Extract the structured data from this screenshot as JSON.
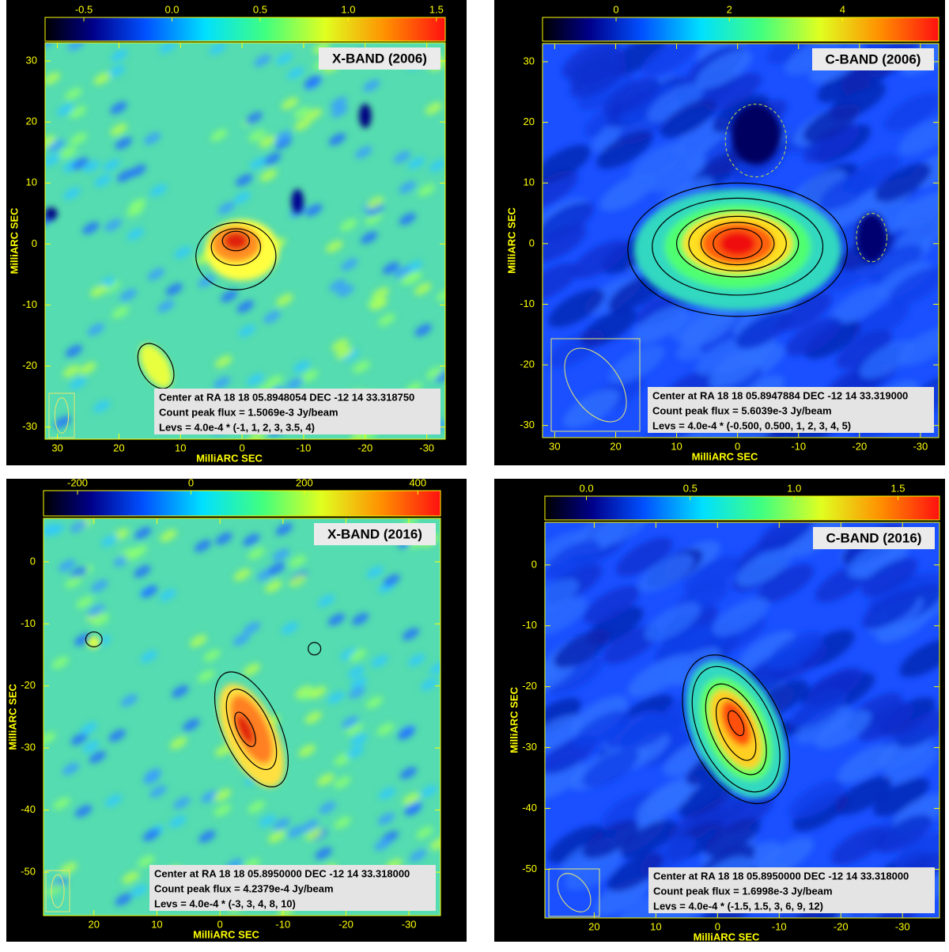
{
  "chart_data": [
    {
      "type": "heatmap",
      "title": "X-BAND (2006)",
      "xlabel": "MilliARC SEC",
      "ylabel": "MilliARC SEC",
      "xlim": [
        32,
        -33
      ],
      "xticks": [
        30,
        20,
        10,
        0,
        -10,
        -20,
        -30
      ],
      "ylim": [
        -32,
        33
      ],
      "yticks": [
        -30,
        -20,
        -10,
        0,
        10,
        20,
        30
      ],
      "clim": [
        -0.72,
        1.55
      ],
      "cticks": [
        -0.5,
        {
          "value": 0,
          "label": "0.0"
        },
        0.5,
        {
          "value": 1,
          "label": "1.0"
        },
        1.5
      ],
      "annotations": [
        "Center at RA 18 18 05.8948054 DEC -12 14 33.318750",
        "Count peak flux = 1.5069e-3 Jy/beam",
        "Levs = 4.0e-4 * (-1, 1, 2, 3, 3.5, 4)"
      ]
    },
    {
      "type": "heatmap",
      "title": "C-BAND (2006)",
      "xlabel": "MilliARC SEC",
      "ylabel": "MilliARC SEC",
      "xlim": [
        32,
        -33
      ],
      "xticks": [
        30,
        20,
        10,
        0,
        -10,
        -20,
        -30
      ],
      "ylim": [
        -32,
        33
      ],
      "yticks": [
        -30,
        -20,
        -10,
        0,
        10,
        20,
        30
      ],
      "clim": [
        -1.3,
        5.7
      ],
      "cticks": [
        0,
        2,
        4
      ],
      "annotations": [
        "Center at RA 18 18 05.8947884 DEC -12 14 33.319000",
        "Count peak flux = 5.6039e-3 Jy/beam",
        "Levs = 4.0e-4 * (-0.500, 0.500, 1, 2, 3, 4, 5)"
      ]
    },
    {
      "type": "heatmap",
      "title": "X-BAND (2016)",
      "xlabel": "MilliARC SEC",
      "ylabel": "MilliARC SEC",
      "xlim": [
        28,
        -35
      ],
      "xticks": [
        20,
        10,
        0,
        -10,
        -20,
        -30
      ],
      "ylim": [
        -57,
        7
      ],
      "yticks": [
        -50,
        -40,
        -30,
        -20,
        -10,
        0
      ],
      "clim": [
        -260,
        440
      ],
      "cticks": [
        -200,
        0,
        200,
        400
      ],
      "annotations": [
        "Center at RA 18 18 05.8950000 DEC -12 14 33.318000",
        "Count peak flux = 4.2379e-4 Jy/beam",
        "Levs = 4.0e-4 * (-3, 3, 4, 8, 10)"
      ]
    },
    {
      "type": "heatmap",
      "title": "C-BAND (2016)",
      "xlabel": "MilliARC SEC",
      "ylabel": "MilliARC SEC",
      "xlim": [
        28,
        -36
      ],
      "xticks": [
        20,
        10,
        0,
        -10,
        -20,
        -30
      ],
      "ylim": [
        -58,
        7
      ],
      "yticks": [
        -50,
        -40,
        -30,
        -20,
        -10,
        0
      ],
      "clim": [
        -0.2,
        1.7
      ],
      "cticks": [
        {
          "value": 0,
          "label": "0.0"
        },
        0.5,
        {
          "value": 1,
          "label": "1.0"
        },
        1.5
      ],
      "annotations": [
        "Center at RA 18 18 05.8950000 DEC -12 14 33.318000",
        "Count peak flux = 1.6998e-3 Jy/beam",
        "Levs = 4.0e-4 * (-1.5, 1.5, 3, 6, 9, 12)"
      ]
    }
  ]
}
